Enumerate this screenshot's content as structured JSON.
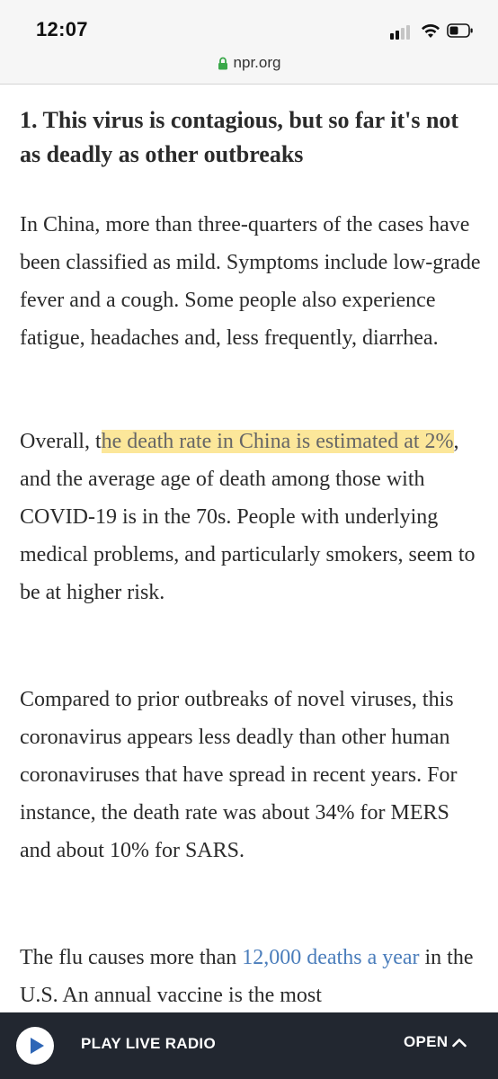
{
  "status_bar": {
    "time": "12:07"
  },
  "browser": {
    "url": "npr.org",
    "lock_color": "#3aa84a"
  },
  "article": {
    "heading": "1. This virus is contagious, but so far it's not as deadly as other outbreaks",
    "paragraphs": {
      "p1": "In China, more than three-quarters of the cases have been classified as mild. Symptoms include low-grade fever and a cough. Some people also experience fatigue, headaches and, less frequently, diarrhea.",
      "p2_before": "Overall, t",
      "p2_highlight": "he death rate in China is estimated at 2%",
      "p2_after": ", and the average age of death among those with COVID-19 is in the 70s. People with underlying medical problems, and particularly smokers, seem to be at higher risk.",
      "p3": "Compared to prior outbreaks of novel viruses, this coronavirus appears less deadly than other human coronaviruses that have spread in recent years. For instance, the death rate was about 34% for MERS and about 10% for SARS.",
      "p4_before": "The flu causes more than ",
      "p4_link": "12,000 deaths a year",
      "p4_after": " in the U.S. An annual vaccine is the most"
    }
  },
  "player": {
    "play_label": "PLAY LIVE RADIO",
    "open_label": "OPEN",
    "bar_color": "#222730",
    "play_icon_color": "#2e66b6"
  }
}
